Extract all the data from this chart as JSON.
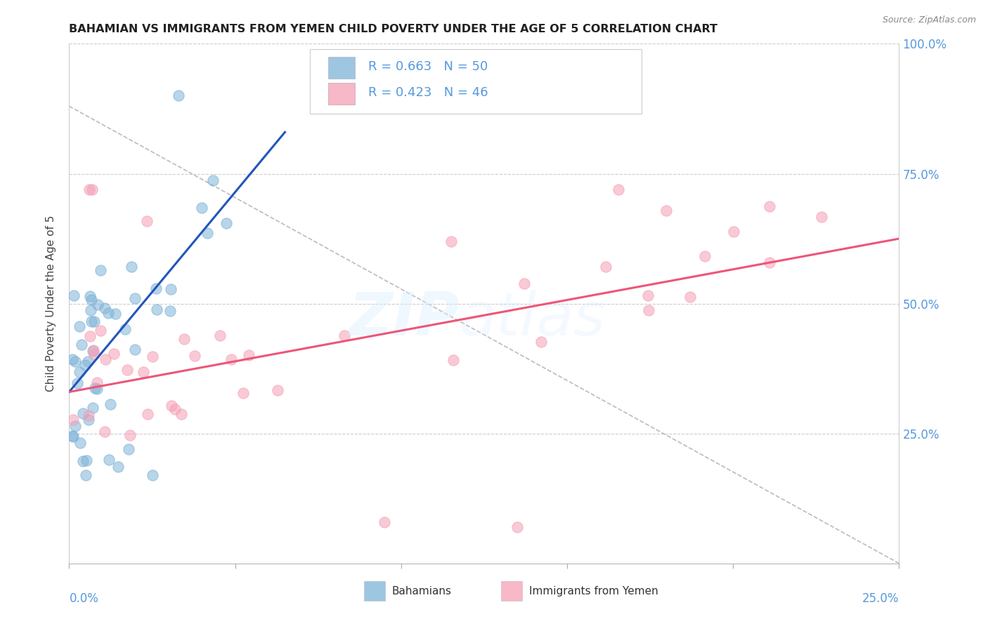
{
  "title": "BAHAMIAN VS IMMIGRANTS FROM YEMEN CHILD POVERTY UNDER THE AGE OF 5 CORRELATION CHART",
  "source": "Source: ZipAtlas.com",
  "ylabel": "Child Poverty Under the Age of 5",
  "xlim": [
    0.0,
    0.25
  ],
  "ylim": [
    0.0,
    1.0
  ],
  "x_ticks": [
    0.0,
    0.05,
    0.1,
    0.15,
    0.2,
    0.25
  ],
  "y_ticks": [
    0.0,
    0.25,
    0.5,
    0.75,
    1.0
  ],
  "y_tick_labels_right": [
    "",
    "25.0%",
    "50.0%",
    "75.0%",
    "100.0%"
  ],
  "legend_line1": "R = 0.663   N = 50",
  "legend_line2": "R = 0.423   N = 46",
  "label_bahamians": "Bahamians",
  "label_yemen": "Immigrants from Yemen",
  "color_blue_scatter": "#7EB3D8",
  "color_pink_scatter": "#F5A0B5",
  "color_blue_line": "#2255BB",
  "color_pink_line": "#EE5577",
  "color_axis_text": "#5599DD",
  "color_title": "#222222",
  "color_source": "#888888",
  "color_grid": "#CCCCCC",
  "color_diag": "#BBBBBB",
  "background_color": "#FFFFFF",
  "blue_line": [
    [
      0.0,
      0.33
    ],
    [
      0.065,
      0.83
    ]
  ],
  "pink_line": [
    [
      0.0,
      0.33
    ],
    [
      0.25,
      0.625
    ]
  ]
}
